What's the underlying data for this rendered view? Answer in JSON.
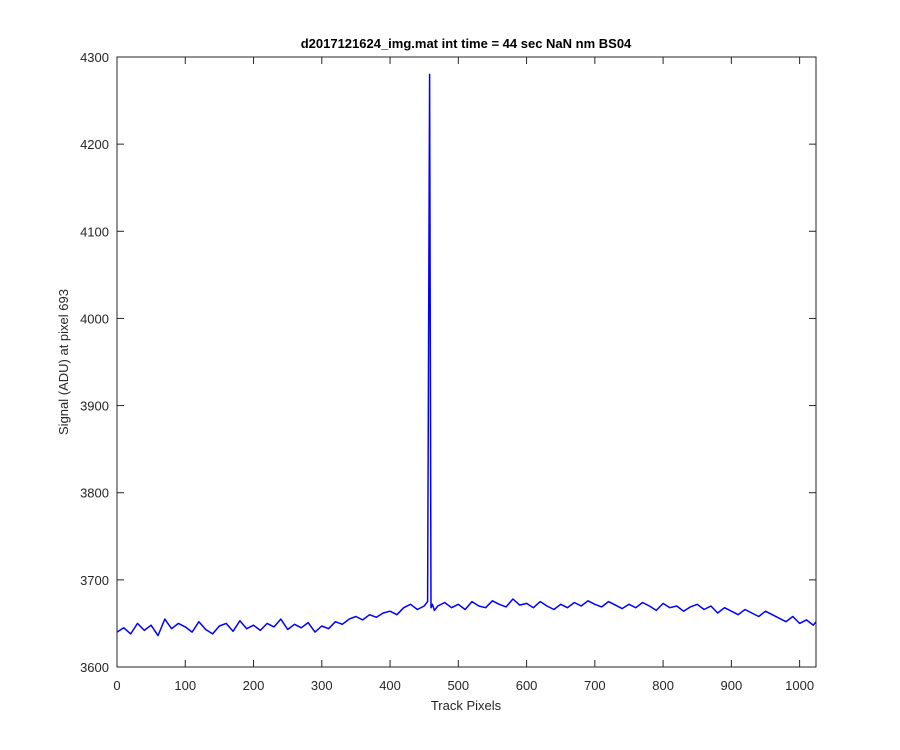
{
  "chart_data": {
    "type": "line",
    "title": "d2017121624_img.mat int time = 44 sec  NaN nm BS04",
    "xlabel": "Track Pixels",
    "ylabel": "Signal (ADU) at pixel 693",
    "xlim": [
      0,
      1024
    ],
    "ylim": [
      3600,
      4300
    ],
    "xticks": [
      0,
      100,
      200,
      300,
      400,
      500,
      600,
      700,
      800,
      900,
      1000
    ],
    "yticks": [
      3600,
      3700,
      3800,
      3900,
      4000,
      4100,
      4200,
      4300
    ],
    "grid": false,
    "legend": "none",
    "line_color": "#0000ff",
    "series": [
      {
        "x": [
          0,
          10,
          20,
          30,
          40,
          50,
          60,
          70,
          80,
          90,
          100,
          110,
          120,
          130,
          140,
          150,
          160,
          170,
          180,
          190,
          200,
          210,
          220,
          230,
          240,
          250,
          260,
          270,
          280,
          290,
          300,
          310,
          320,
          330,
          340,
          350,
          360,
          370,
          380,
          390,
          400,
          410,
          420,
          430,
          440,
          450,
          455,
          458,
          460,
          462,
          465,
          470,
          480,
          490,
          500,
          510,
          520,
          530,
          540,
          550,
          560,
          570,
          580,
          590,
          600,
          610,
          620,
          630,
          640,
          650,
          660,
          670,
          680,
          690,
          700,
          710,
          720,
          730,
          740,
          750,
          760,
          770,
          780,
          790,
          800,
          810,
          820,
          830,
          840,
          850,
          860,
          870,
          880,
          890,
          900,
          910,
          920,
          930,
          940,
          950,
          960,
          970,
          980,
          990,
          1000,
          1010,
          1020,
          1024
        ],
        "y": [
          3640,
          3645,
          3638,
          3650,
          3642,
          3648,
          3636,
          3655,
          3644,
          3650,
          3646,
          3640,
          3652,
          3643,
          3638,
          3647,
          3650,
          3641,
          3653,
          3644,
          3648,
          3642,
          3650,
          3646,
          3655,
          3643,
          3649,
          3645,
          3651,
          3640,
          3647,
          3644,
          3652,
          3649,
          3655,
          3658,
          3654,
          3660,
          3657,
          3662,
          3664,
          3660,
          3668,
          3672,
          3666,
          3670,
          3675,
          4280,
          3668,
          3672,
          3665,
          3670,
          3674,
          3668,
          3672,
          3666,
          3675,
          3670,
          3668,
          3676,
          3672,
          3669,
          3678,
          3671,
          3673,
          3668,
          3675,
          3670,
          3666,
          3672,
          3668,
          3674,
          3670,
          3676,
          3672,
          3669,
          3675,
          3671,
          3667,
          3672,
          3668,
          3674,
          3670,
          3665,
          3673,
          3668,
          3670,
          3664,
          3669,
          3672,
          3666,
          3670,
          3662,
          3668,
          3664,
          3660,
          3666,
          3662,
          3658,
          3664,
          3660,
          3656,
          3652,
          3658,
          3650,
          3654,
          3648,
          3652
        ]
      }
    ]
  }
}
